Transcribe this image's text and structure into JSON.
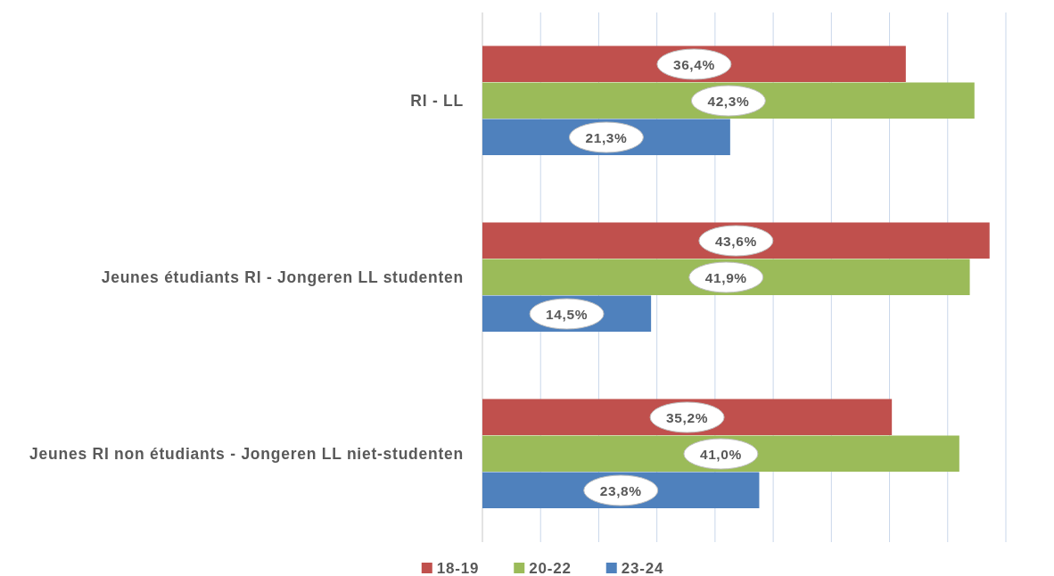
{
  "chart_data": {
    "type": "bar",
    "orientation": "horizontal",
    "categories": [
      "RI - LL",
      "Jeunes étudiants RI - Jongeren LL studenten",
      "Jeunes RI non étudiants - Jongeren LL niet-studenten"
    ],
    "series": [
      {
        "name": "18-19",
        "color": "#c0504d",
        "values": [
          36.4,
          43.6,
          35.2
        ],
        "value_labels": [
          "36,4%",
          "43,6%",
          "35,2%"
        ]
      },
      {
        "name": "20-22",
        "color": "#9bbb59",
        "values": [
          42.3,
          41.9,
          41.0
        ],
        "value_labels": [
          "42,3%",
          "41,9%",
          "41,0%"
        ]
      },
      {
        "name": "23-24",
        "color": "#4f81bd",
        "values": [
          21.3,
          14.5,
          23.8
        ],
        "value_labels": [
          "21,3%",
          "14,5%",
          "23,8%"
        ]
      }
    ],
    "xlim": [
      0,
      45
    ],
    "xticks": [
      {
        "value": 0,
        "label": null
      },
      {
        "value": 5,
        "label": null
      },
      {
        "value": 10,
        "label": null
      },
      {
        "value": 15,
        "label": null
      },
      {
        "value": 20,
        "label": null
      },
      {
        "value": 25,
        "label": null
      },
      {
        "value": 30,
        "label": null
      },
      {
        "value": 35,
        "label": null
      },
      {
        "value": 40,
        "label": null
      },
      {
        "value": 45,
        "label": null
      }
    ],
    "tick_labels": "y",
    "grid": "x",
    "legend": "bottom"
  }
}
